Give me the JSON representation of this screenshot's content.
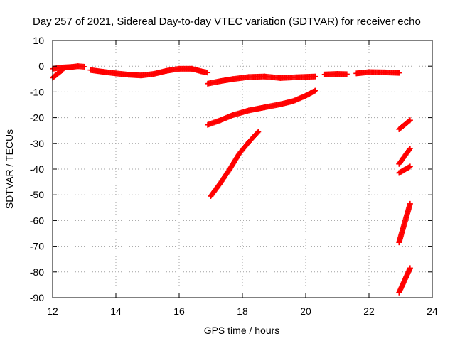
{
  "chart_data": {
    "type": "scatter",
    "title": "Day 257 of 2021, Sidereal Day-to-day VTEC variation (SDTVAR) for receiver echo",
    "xlabel": "GPS time / hours",
    "ylabel": "SDTVAR / TECUs",
    "xlim": [
      12,
      24
    ],
    "ylim": [
      -90,
      10
    ],
    "xticks": [
      "12",
      "14",
      "16",
      "18",
      "20",
      "22",
      "24"
    ],
    "yticks": [
      "10",
      "0",
      "-10",
      "-20",
      "-30",
      "-40",
      "-50",
      "-60",
      "-70",
      "-80",
      "-90"
    ],
    "grid": true,
    "marker": "+",
    "color": "#ff0000",
    "series": [
      {
        "points": [
          [
            12.0,
            -4.5
          ],
          [
            12.1,
            -3.5
          ],
          [
            12.2,
            -2.5
          ],
          [
            12.3,
            -1.6
          ]
        ]
      },
      {
        "points": [
          [
            12.0,
            -1.0
          ],
          [
            12.3,
            -0.5
          ],
          [
            12.6,
            -0.3
          ],
          [
            12.8,
            0.0
          ],
          [
            13.0,
            -0.2
          ]
        ]
      },
      {
        "points": [
          [
            13.2,
            -1.5
          ],
          [
            13.6,
            -2.2
          ],
          [
            14.0,
            -2.8
          ],
          [
            14.4,
            -3.3
          ],
          [
            14.8,
            -3.6
          ],
          [
            15.2,
            -3.0
          ],
          [
            15.6,
            -1.8
          ],
          [
            16.0,
            -1.0
          ],
          [
            16.4,
            -1.0
          ],
          [
            16.7,
            -2.0
          ],
          [
            16.9,
            -2.5
          ]
        ]
      },
      {
        "points": [
          [
            16.9,
            -6.8
          ],
          [
            17.3,
            -5.8
          ],
          [
            17.7,
            -5.0
          ],
          [
            18.2,
            -4.2
          ],
          [
            18.7,
            -4.0
          ],
          [
            19.2,
            -4.6
          ],
          [
            19.7,
            -4.3
          ],
          [
            20.3,
            -4.0
          ]
        ]
      },
      {
        "points": [
          [
            20.6,
            -3.2
          ],
          [
            21.0,
            -3.0
          ],
          [
            21.3,
            -3.1
          ]
        ]
      },
      {
        "points": [
          [
            21.6,
            -2.8
          ],
          [
            22.0,
            -2.3
          ],
          [
            22.5,
            -2.4
          ],
          [
            22.95,
            -2.6
          ]
        ]
      },
      {
        "points": [
          [
            16.9,
            -22.8
          ],
          [
            17.3,
            -21.0
          ],
          [
            17.7,
            -19.0
          ],
          [
            18.2,
            -17.2
          ],
          [
            18.7,
            -16.0
          ],
          [
            19.2,
            -14.8
          ],
          [
            19.6,
            -13.6
          ],
          [
            20.0,
            -11.5
          ],
          [
            20.3,
            -9.5
          ]
        ]
      },
      {
        "points": [
          [
            17.0,
            -50.5
          ],
          [
            17.3,
            -45.5
          ],
          [
            17.6,
            -40.0
          ],
          [
            17.9,
            -34.0
          ],
          [
            18.2,
            -29.5
          ],
          [
            18.5,
            -25.5
          ]
        ]
      },
      {
        "points": [
          [
            22.95,
            -24.5
          ],
          [
            23.3,
            -21.0
          ]
        ]
      },
      {
        "points": [
          [
            22.95,
            -38.0
          ],
          [
            23.3,
            -32.0
          ]
        ]
      },
      {
        "points": [
          [
            22.95,
            -41.5
          ],
          [
            23.3,
            -39.0
          ]
        ]
      },
      {
        "points": [
          [
            22.95,
            -68.5
          ],
          [
            23.3,
            -53.5
          ]
        ]
      },
      {
        "points": [
          [
            22.95,
            -88.0
          ],
          [
            23.3,
            -78.5
          ]
        ]
      }
    ]
  }
}
